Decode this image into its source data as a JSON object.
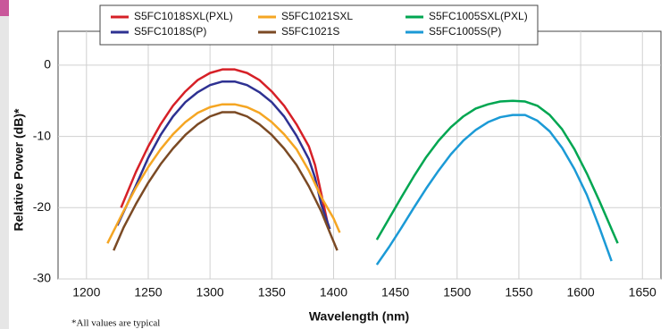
{
  "chart_data": {
    "type": "line",
    "x_label": "Wavelength (nm)",
    "y_label": "Relative Power (dB)*",
    "note": "*All values are typical",
    "xlim": [
      1177,
      1665
    ],
    "ylim": [
      -30,
      4.75
    ],
    "xticks": [
      1200,
      1250,
      1300,
      1350,
      1400,
      1450,
      1500,
      1550,
      1600,
      1650
    ],
    "yticks": [
      0,
      -10,
      -20,
      -30
    ],
    "grid": true,
    "series": [
      {
        "name": "S5FC1018SXL(PXL)",
        "color": "#d62027",
        "x": [
          1228,
          1240,
          1250,
          1260,
          1270,
          1280,
          1290,
          1300,
          1310,
          1320,
          1330,
          1340,
          1350,
          1360,
          1370,
          1380,
          1385,
          1390,
          1395
        ],
        "values": [
          -20,
          -15,
          -11.4,
          -8.3,
          -5.7,
          -3.7,
          -2.1,
          -1.1,
          -0.6,
          -0.6,
          -1.1,
          -2.1,
          -3.7,
          -5.7,
          -8.3,
          -11.4,
          -14,
          -18,
          -22
        ]
      },
      {
        "name": "S5FC1018S(P)",
        "color": "#2e3192",
        "x": [
          1225,
          1240,
          1250,
          1260,
          1270,
          1280,
          1290,
          1300,
          1310,
          1320,
          1330,
          1340,
          1350,
          1360,
          1370,
          1380,
          1385,
          1390,
          1397
        ],
        "values": [
          -22.5,
          -16.9,
          -13,
          -9.8,
          -7.2,
          -5.2,
          -3.8,
          -2.8,
          -2.3,
          -2.3,
          -2.8,
          -3.8,
          -5.2,
          -7.2,
          -9.9,
          -13.2,
          -15.8,
          -19.5,
          -23
        ]
      },
      {
        "name": "S5FC1021SXL",
        "color": "#f5a623",
        "x": [
          1217,
          1230,
          1240,
          1250,
          1260,
          1270,
          1280,
          1290,
          1300,
          1310,
          1320,
          1330,
          1340,
          1350,
          1360,
          1370,
          1380,
          1390,
          1400,
          1405
        ],
        "values": [
          -25,
          -20.5,
          -17.2,
          -14.3,
          -11.8,
          -9.7,
          -8,
          -6.7,
          -5.9,
          -5.5,
          -5.5,
          -5.9,
          -6.7,
          -8,
          -9.7,
          -11.8,
          -14.8,
          -18.5,
          -21.5,
          -23.5
        ]
      },
      {
        "name": "S5FC1021S",
        "color": "#7b4a24",
        "x": [
          1222,
          1230,
          1240,
          1250,
          1260,
          1270,
          1280,
          1290,
          1300,
          1310,
          1320,
          1330,
          1340,
          1350,
          1360,
          1370,
          1380,
          1390,
          1397,
          1403
        ],
        "values": [
          -26,
          -22.8,
          -19.5,
          -16.5,
          -13.9,
          -11.7,
          -9.8,
          -8.3,
          -7.2,
          -6.6,
          -6.6,
          -7.2,
          -8.3,
          -9.8,
          -11.7,
          -14,
          -17,
          -20.5,
          -23.5,
          -26
        ]
      },
      {
        "name": "S5FC1005SXL(PXL)",
        "color": "#00a651",
        "x": [
          1435,
          1445,
          1455,
          1465,
          1475,
          1485,
          1495,
          1505,
          1515,
          1525,
          1535,
          1545,
          1555,
          1565,
          1575,
          1585,
          1595,
          1605,
          1615,
          1625,
          1630
        ],
        "values": [
          -24.5,
          -21.5,
          -18.5,
          -15.6,
          -12.9,
          -10.6,
          -8.7,
          -7.2,
          -6.1,
          -5.5,
          -5.1,
          -5,
          -5.1,
          -5.7,
          -7,
          -9,
          -11.8,
          -15.2,
          -19,
          -23,
          -25
        ]
      },
      {
        "name": "S5FC1005S(P)",
        "color": "#1b9ad6",
        "x": [
          1435,
          1445,
          1455,
          1465,
          1475,
          1485,
          1495,
          1505,
          1515,
          1525,
          1535,
          1545,
          1555,
          1565,
          1575,
          1585,
          1595,
          1605,
          1615,
          1625
        ],
        "values": [
          -28,
          -25.5,
          -22.8,
          -20,
          -17.3,
          -14.8,
          -12.5,
          -10.6,
          -9.1,
          -8,
          -7.3,
          -7,
          -7,
          -7.8,
          -9.3,
          -11.6,
          -14.6,
          -18.2,
          -22.7,
          -27.5
        ]
      }
    ]
  }
}
